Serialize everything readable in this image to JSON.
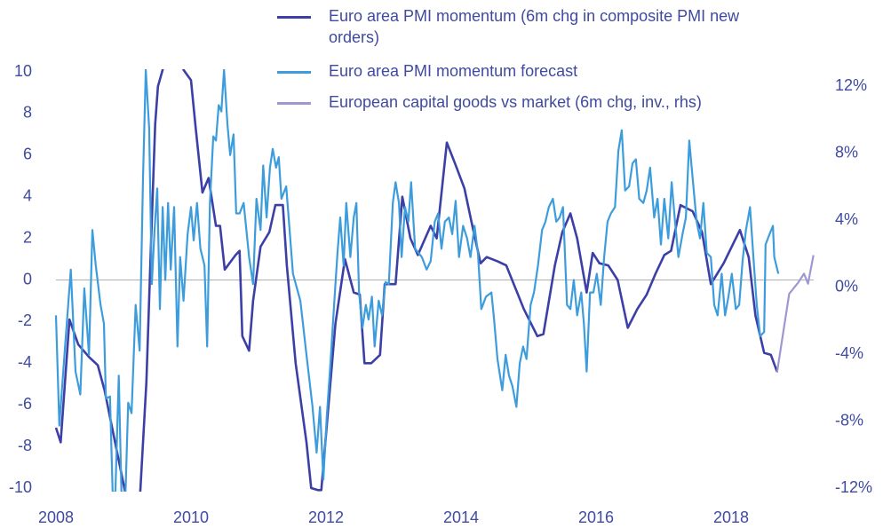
{
  "chart_data": {
    "type": "line",
    "xlim": [
      2008,
      2019.22
    ],
    "xticks": [
      2008,
      2010,
      2012,
      2014,
      2016,
      2018
    ],
    "ylim": [
      -10,
      10
    ],
    "yticks": [
      -10,
      -8,
      -6,
      -4,
      -2,
      0,
      2,
      4,
      6,
      8,
      10
    ],
    "y2lim": [
      -12,
      12
    ],
    "y2ticks": [
      {
        "value": -12,
        "label": "-12%"
      },
      {
        "value": -8,
        "label": "-8%"
      },
      {
        "value": -4,
        "label": "-4%"
      },
      {
        "value": 0,
        "label": "0%"
      },
      {
        "value": 4,
        "label": "4%"
      },
      {
        "value": 8,
        "label": "8%"
      },
      {
        "value": 12,
        "label": "12%"
      }
    ],
    "zero_line": true,
    "series": [
      {
        "name": "Euro area PMI momentum (6m chg in composite PMI new orders)",
        "color": "#3b3fa6",
        "x": [
          2008.0,
          2008.07,
          2008.2,
          2008.33,
          2008.49,
          2008.62,
          2008.72,
          2009.2,
          2009.25,
          2009.34,
          2009.41,
          2009.47,
          2009.51,
          2009.58,
          2009.72,
          2009.89,
          2010.0,
          2010.07,
          2010.17,
          2010.26,
          2010.37,
          2010.43,
          2010.5,
          2010.66,
          2010.72,
          2010.76,
          2010.86,
          2010.92,
          2011.03,
          2011.16,
          2011.25,
          2011.36,
          2011.42,
          2011.55,
          2011.71,
          2011.78,
          2011.88,
          2011.93,
          2012.14,
          2012.28,
          2012.41,
          2012.5,
          2012.57,
          2012.67,
          2012.8,
          2012.87,
          2013.03,
          2013.13,
          2013.25,
          2013.36,
          2013.55,
          2013.64,
          2013.79,
          2013.91,
          2014.05,
          2014.18,
          2014.29,
          2014.38,
          2014.54,
          2014.67,
          2014.93,
          2015.13,
          2015.22,
          2015.39,
          2015.5,
          2015.62,
          2015.72,
          2015.86,
          2015.95,
          2016.05,
          2016.18,
          2016.32,
          2016.47,
          2016.61,
          2016.75,
          2016.88,
          2017.01,
          2017.11,
          2017.25,
          2017.43,
          2017.57,
          2017.7,
          2017.89,
          2018.13,
          2018.26,
          2018.36,
          2018.49,
          2018.59,
          2018.68
        ],
        "values": [
          -7.1,
          -7.8,
          -1.9,
          -3.1,
          -3.7,
          -4.1,
          -5.3,
          -13,
          -10.1,
          -4.9,
          2.0,
          7.5,
          9.3,
          10.1,
          12.5,
          10.1,
          9.6,
          7.3,
          4.2,
          4.9,
          2.6,
          2.6,
          0.5,
          1.2,
          1.4,
          -2.7,
          -3.4,
          -1.0,
          1.6,
          2.3,
          3.6,
          3.6,
          0.7,
          -4.0,
          -7.8,
          -10.0,
          -10.1,
          -10.1,
          -2.1,
          1.0,
          -0.6,
          -0.7,
          -4.0,
          -4.0,
          -3.6,
          -0.2,
          -0.2,
          4.0,
          2.0,
          1.2,
          2.6,
          2.0,
          6.6,
          5.6,
          4.4,
          2.4,
          0.8,
          1.1,
          0.9,
          0.7,
          -1.4,
          -2.7,
          -2.6,
          0.7,
          2.3,
          3.2,
          2.0,
          -0.6,
          1.3,
          0.8,
          0.7,
          0,
          -2.3,
          -1.4,
          -0.7,
          0.3,
          1.2,
          1.4,
          3.6,
          3.3,
          2.3,
          -0.2,
          0.8,
          2.4,
          1.1,
          -1.7,
          -3.5,
          -3.6,
          -4.4
        ]
      },
      {
        "name": "Euro area PMI momentum forecast",
        "color": "#3d9ddc",
        "x": [
          2008.0,
          2008.05,
          2008.13,
          2008.22,
          2008.29,
          2008.36,
          2008.42,
          2008.49,
          2008.54,
          2008.59,
          2008.66,
          2008.71,
          2008.74,
          2008.8,
          2008.84,
          2008.88,
          2008.93,
          2008.97,
          2009.03,
          2009.07,
          2009.12,
          2009.18,
          2009.24,
          2009.29,
          2009.33,
          2009.38,
          2009.42,
          2009.46,
          2009.5,
          2009.54,
          2009.58,
          2009.62,
          2009.66,
          2009.7,
          2009.75,
          2009.8,
          2009.84,
          2009.89,
          2009.95,
          2010.0,
          2010.04,
          2010.09,
          2010.14,
          2010.2,
          2010.24,
          2010.28,
          2010.33,
          2010.37,
          2010.41,
          2010.45,
          2010.49,
          2010.54,
          2010.58,
          2010.63,
          2010.67,
          2010.72,
          2010.78,
          2010.86,
          2010.92,
          2010.97,
          2011.03,
          2011.07,
          2011.12,
          2011.17,
          2011.21,
          2011.26,
          2011.3,
          2011.34,
          2011.41,
          2011.51,
          2011.62,
          2011.71,
          2011.8,
          2011.86,
          2011.91,
          2011.96,
          2012.01,
          2012.07,
          2012.12,
          2012.17,
          2012.21,
          2012.26,
          2012.3,
          2012.36,
          2012.41,
          2012.45,
          2012.49,
          2012.54,
          2012.59,
          2012.63,
          2012.68,
          2012.72,
          2012.78,
          2012.83,
          2012.88,
          2012.93,
          2012.99,
          2013.03,
          2013.08,
          2013.12,
          2013.17,
          2013.22,
          2013.26,
          2013.32,
          2013.37,
          2013.42,
          2013.49,
          2013.55,
          2013.61,
          2013.66,
          2013.71,
          2013.76,
          2013.82,
          2013.87,
          2013.92,
          2013.97,
          2014.03,
          2014.09,
          2014.14,
          2014.2,
          2014.25,
          2014.3,
          2014.37,
          2014.45,
          2014.49,
          2014.54,
          2014.61,
          2014.66,
          2014.71,
          2014.76,
          2014.82,
          2014.87,
          2014.92,
          2014.97,
          2015.03,
          2015.08,
          2015.14,
          2015.2,
          2015.25,
          2015.3,
          2015.36,
          2015.41,
          2015.46,
          2015.51,
          2015.57,
          2015.62,
          2015.67,
          2015.72,
          2015.78,
          2015.82,
          2015.86,
          2015.91,
          2015.96,
          2016.01,
          2016.07,
          2016.12,
          2016.17,
          2016.22,
          2016.28,
          2016.33,
          2016.38,
          2016.43,
          2016.49,
          2016.54,
          2016.59,
          2016.64,
          2016.7,
          2016.75,
          2016.8,
          2016.86,
          2016.91,
          2016.96,
          2017.01,
          2017.07,
          2017.12,
          2017.17,
          2017.22,
          2017.28,
          2017.33,
          2017.38,
          2017.43,
          2017.49,
          2017.54,
          2017.59,
          2017.64,
          2017.7,
          2017.75,
          2017.8,
          2017.86,
          2017.91,
          2017.96,
          2018.01,
          2018.07,
          2018.12,
          2018.17,
          2018.22,
          2018.28,
          2018.33,
          2018.38,
          2018.43,
          2018.49,
          2018.51,
          2018.57,
          2018.62,
          2018.64,
          2018.7
        ],
        "values": [
          -1.7,
          -7.0,
          -3.4,
          0.5,
          -4.4,
          -5.5,
          -0.4,
          -3.6,
          2.4,
          0.7,
          -1.2,
          -2.1,
          -5.7,
          -5.6,
          -10.2,
          -10.2,
          -4.6,
          -10.2,
          -10.2,
          -5.9,
          -6.4,
          -1.2,
          -3.4,
          4.9,
          10.1,
          7.3,
          -0.2,
          2.4,
          4.4,
          -1.4,
          3.5,
          0,
          3.7,
          0.5,
          3.5,
          -3.2,
          1.1,
          -1.0,
          2.2,
          3.5,
          1.9,
          3.7,
          1.5,
          0.7,
          -3.2,
          3.7,
          6.9,
          6.7,
          8.4,
          8.1,
          10.1,
          7.5,
          6.0,
          7.0,
          3.2,
          3.2,
          3.7,
          1.1,
          -0.2,
          3.9,
          2.4,
          5.5,
          3.0,
          5.4,
          6.3,
          5.4,
          5.9,
          3.9,
          4.5,
          0.3,
          -1.0,
          -3.6,
          -6.1,
          -8.3,
          -6.1,
          -9.6,
          -6.6,
          -3.8,
          -1.2,
          1.3,
          3.0,
          0.7,
          3.7,
          1.1,
          3.0,
          3.7,
          -0.6,
          -2.3,
          -1.2,
          -1.9,
          -0.8,
          -3.2,
          -1.0,
          -1.7,
          -0.1,
          -0.2,
          3.7,
          4.7,
          3.7,
          1.1,
          3.5,
          2.8,
          4.7,
          1.5,
          1.3,
          1.1,
          0.5,
          0.9,
          2.8,
          3.2,
          1.5,
          2.8,
          3.0,
          2.2,
          3.8,
          1.1,
          2.6,
          2.0,
          1.1,
          2.6,
          1.3,
          -1.4,
          -0.8,
          -0.6,
          -1.9,
          -3.8,
          -5.3,
          -3.6,
          -4.6,
          -5.1,
          -6.1,
          -4.0,
          -3.2,
          -3.8,
          -1.2,
          -0.6,
          0.7,
          2.4,
          2.8,
          3.5,
          3.9,
          2.8,
          3.0,
          3.5,
          -1.2,
          -1.4,
          0,
          -1.7,
          -0.6,
          -2.1,
          -4.4,
          -0.6,
          -0.6,
          0.3,
          -1.2,
          1.1,
          2.8,
          3.2,
          3.5,
          6.2,
          7.2,
          4.3,
          4.5,
          5.6,
          5.8,
          3.9,
          3.7,
          4.3,
          5.4,
          3.0,
          3.9,
          1.7,
          3.9,
          2.0,
          4.7,
          2.8,
          1.1,
          2.2,
          3.0,
          6.7,
          4.9,
          2.8,
          2.0,
          3.7,
          1.3,
          1.1,
          -1.2,
          -1.7,
          0.3,
          -1.7,
          -0.8,
          0.3,
          -1.4,
          -1.2,
          0.9,
          2.4,
          3.5,
          1.1,
          -1.2,
          -2.7,
          -2.5,
          1.7,
          2.2,
          2.6,
          1.1,
          0.3
        ]
      },
      {
        "name": "European capital goods vs market (6m chg, inv., rhs)",
        "color": "#9d97d3",
        "axis": "y2",
        "x": [
          2018.68,
          2018.86,
          2019.0,
          2019.08,
          2019.14,
          2019.22
        ],
        "values": [
          -5.1,
          -0.4,
          0.3,
          0.8,
          0.2,
          1.9
        ]
      }
    ]
  }
}
